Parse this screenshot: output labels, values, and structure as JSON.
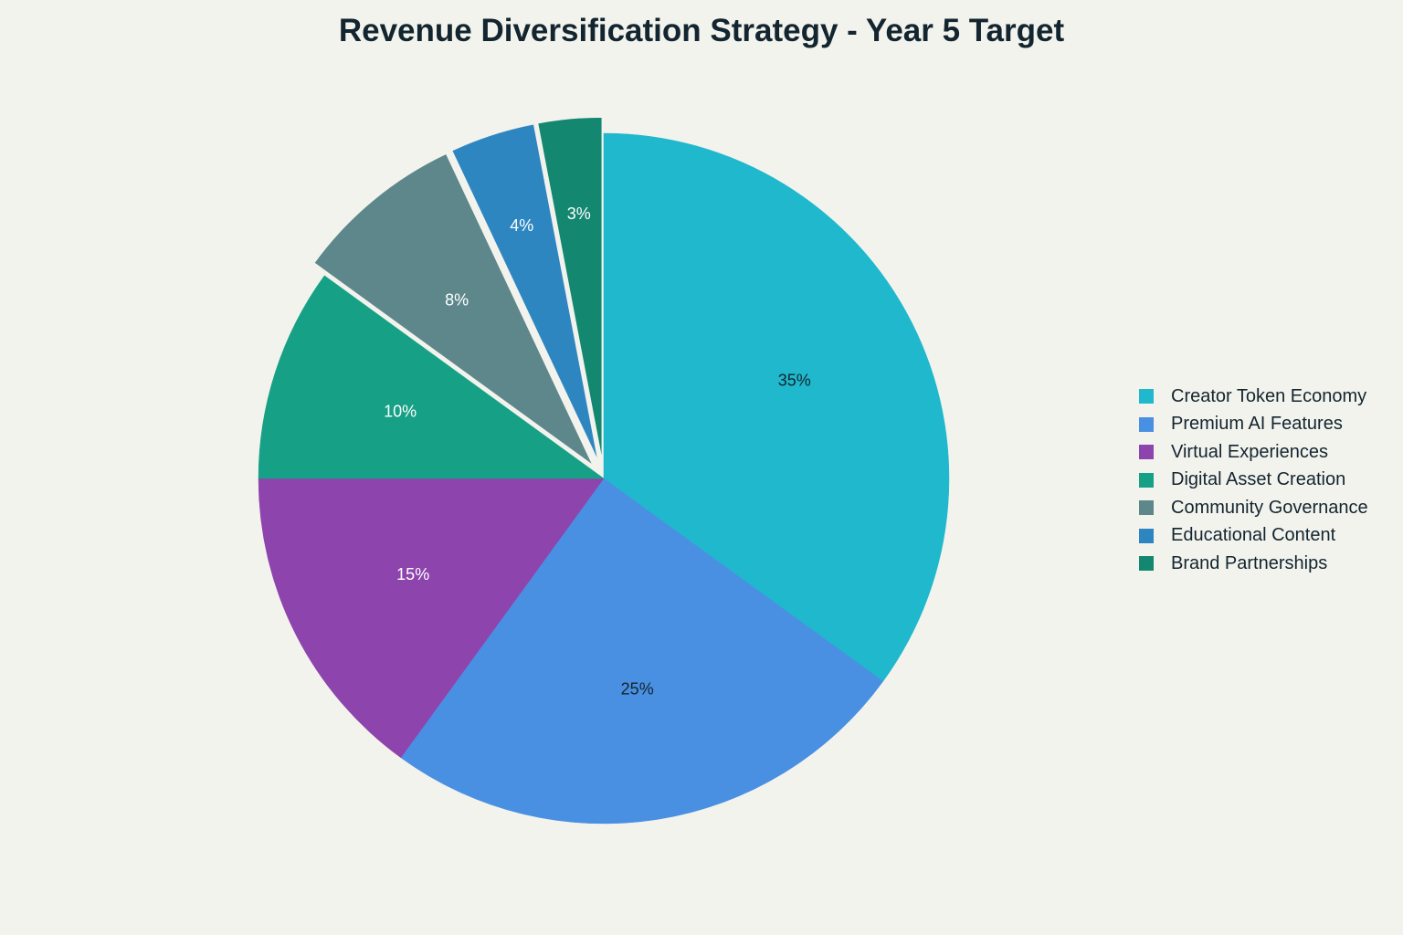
{
  "chart_data": {
    "type": "pie",
    "title": "Revenue Diversification Strategy - Year 5 Target",
    "legend_position": "right",
    "slices": [
      {
        "label": "Creator Token Economy",
        "value": 35,
        "display": "35%",
        "color": "#1fb8cd",
        "pulled": false,
        "text_color": "#13252f"
      },
      {
        "label": "Premium AI Features",
        "value": 25,
        "display": "25%",
        "color": "#4a90e2",
        "pulled": false,
        "text_color": "#13252f"
      },
      {
        "label": "Virtual Experiences",
        "value": 15,
        "display": "15%",
        "color": "#8e44ad",
        "pulled": false,
        "text_color": "#ffffff"
      },
      {
        "label": "Digital Asset Creation",
        "value": 10,
        "display": "10%",
        "color": "#16a085",
        "pulled": false,
        "text_color": "#ffffff"
      },
      {
        "label": "Community Governance",
        "value": 8,
        "display": "8%",
        "color": "#5d878b",
        "pulled": true,
        "text_color": "#ffffff"
      },
      {
        "label": "Educational Content",
        "value": 4,
        "display": "4%",
        "color": "#2e86c1",
        "pulled": true,
        "text_color": "#ffffff"
      },
      {
        "label": "Brand Partnerships",
        "value": 3,
        "display": "3%",
        "color": "#138770",
        "pulled": true,
        "text_color": "#ffffff"
      }
    ]
  }
}
